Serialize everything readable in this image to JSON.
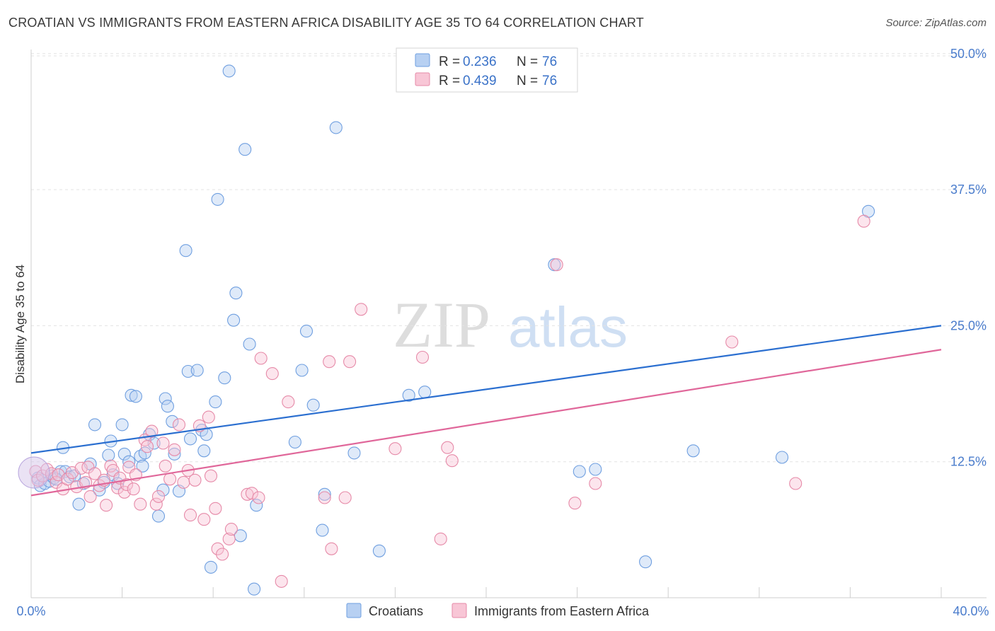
{
  "title": "CROATIAN VS IMMIGRANTS FROM EASTERN AFRICA DISABILITY AGE 35 TO 64 CORRELATION CHART",
  "source": "Source: ZipAtlas.com",
  "watermark": {
    "zip": "ZIP",
    "atlas": "atlas"
  },
  "legend": {
    "r_label": "R =",
    "n_label": "N =",
    "rows": [
      {
        "r": "0.236",
        "n": "76",
        "fill": "#b7d0f2",
        "stroke": "#6f9fe0"
      },
      {
        "r": "0.439",
        "n": "76",
        "fill": "#f8c6d6",
        "stroke": "#e68aa8"
      }
    ]
  },
  "chart_data": {
    "type": "scatter",
    "title": "CROATIAN VS IMMIGRANTS FROM EASTERN AFRICA DISABILITY AGE 35 TO 64 CORRELATION CHART",
    "ylabel": "Disability Age 35 to 64",
    "xlabel": "",
    "xlim": [
      0,
      40
    ],
    "ylim": [
      0,
      52
    ],
    "x_tick_labels": [
      "0.0%",
      "40.0%"
    ],
    "y_ticks": [
      {
        "value": 12.5,
        "label": "12.5%"
      },
      {
        "value": 25.0,
        "label": "25.0%"
      },
      {
        "value": 37.5,
        "label": "37.5%"
      },
      {
        "value": 50.0,
        "label": "50.0%"
      }
    ],
    "series": [
      {
        "name": "Croatians",
        "color": "#6f9fe0",
        "fill": "#b7d0f2",
        "line_color": "#2b6fd0",
        "trend": {
          "x0": 0,
          "y0": 13.3,
          "x1": 40,
          "y1": 25.0
        },
        "points": [
          [
            0.3,
            11.0
          ],
          [
            0.4,
            10.3
          ],
          [
            0.6,
            10.5
          ],
          [
            0.8,
            10.7
          ],
          [
            0.9,
            11.2
          ],
          [
            1.0,
            11.0
          ],
          [
            1.1,
            10.9
          ],
          [
            1.3,
            11.6
          ],
          [
            1.4,
            13.8
          ],
          [
            1.5,
            11.6
          ],
          [
            1.7,
            11.1
          ],
          [
            1.9,
            11.2
          ],
          [
            2.1,
            8.6
          ],
          [
            2.3,
            10.5
          ],
          [
            2.6,
            12.3
          ],
          [
            2.8,
            15.9
          ],
          [
            3.0,
            9.9
          ],
          [
            3.2,
            10.6
          ],
          [
            3.4,
            13.1
          ],
          [
            3.5,
            14.4
          ],
          [
            3.6,
            11.3
          ],
          [
            3.8,
            10.5
          ],
          [
            4.0,
            15.9
          ],
          [
            4.1,
            13.2
          ],
          [
            4.3,
            12.5
          ],
          [
            4.4,
            18.6
          ],
          [
            4.6,
            18.5
          ],
          [
            4.8,
            13.0
          ],
          [
            4.9,
            12.1
          ],
          [
            5.0,
            13.3
          ],
          [
            5.2,
            15.0
          ],
          [
            5.4,
            14.2
          ],
          [
            5.6,
            7.5
          ],
          [
            5.8,
            9.9
          ],
          [
            5.9,
            18.3
          ],
          [
            6.0,
            17.6
          ],
          [
            6.2,
            16.2
          ],
          [
            6.3,
            13.2
          ],
          [
            6.5,
            9.8
          ],
          [
            6.8,
            31.9
          ],
          [
            6.9,
            20.8
          ],
          [
            7.0,
            14.6
          ],
          [
            7.3,
            20.9
          ],
          [
            7.5,
            15.4
          ],
          [
            7.6,
            13.5
          ],
          [
            7.7,
            15.0
          ],
          [
            7.9,
            2.8
          ],
          [
            8.1,
            18.0
          ],
          [
            8.2,
            36.6
          ],
          [
            8.5,
            20.2
          ],
          [
            8.7,
            48.4
          ],
          [
            8.9,
            25.5
          ],
          [
            9.0,
            28.0
          ],
          [
            9.2,
            5.7
          ],
          [
            9.4,
            41.2
          ],
          [
            9.6,
            23.3
          ],
          [
            9.8,
            0.8
          ],
          [
            9.9,
            8.5
          ],
          [
            11.6,
            14.3
          ],
          [
            11.9,
            20.9
          ],
          [
            12.1,
            24.5
          ],
          [
            12.4,
            17.7
          ],
          [
            12.8,
            6.2
          ],
          [
            12.9,
            9.5
          ],
          [
            13.4,
            43.2
          ],
          [
            14.2,
            13.3
          ],
          [
            15.3,
            4.3
          ],
          [
            16.6,
            18.6
          ],
          [
            17.3,
            18.9
          ],
          [
            23.0,
            30.6
          ],
          [
            24.1,
            11.6
          ],
          [
            24.8,
            11.8
          ],
          [
            27.0,
            3.3
          ],
          [
            29.1,
            13.5
          ],
          [
            33.0,
            12.9
          ],
          [
            36.8,
            35.5
          ]
        ]
      },
      {
        "name": "Immigrants from Eastern Africa",
        "color": "#e68aa8",
        "fill": "#f8c6d6",
        "line_color": "#e0679a",
        "trend": {
          "x0": 0,
          "y0": 9.4,
          "x1": 40,
          "y1": 22.8
        },
        "points": [
          [
            0.2,
            11.6
          ],
          [
            0.3,
            10.8
          ],
          [
            0.5,
            11.2
          ],
          [
            0.7,
            11.8
          ],
          [
            0.9,
            11.4
          ],
          [
            1.1,
            10.6
          ],
          [
            1.2,
            11.3
          ],
          [
            1.4,
            10.0
          ],
          [
            1.6,
            10.9
          ],
          [
            1.8,
            11.5
          ],
          [
            2.0,
            10.2
          ],
          [
            2.2,
            11.9
          ],
          [
            2.4,
            10.6
          ],
          [
            2.5,
            12.0
          ],
          [
            2.6,
            9.3
          ],
          [
            2.8,
            11.4
          ],
          [
            3.0,
            10.3
          ],
          [
            3.2,
            10.8
          ],
          [
            3.3,
            8.5
          ],
          [
            3.5,
            12.1
          ],
          [
            3.6,
            11.7
          ],
          [
            3.8,
            10.1
          ],
          [
            3.9,
            11.0
          ],
          [
            4.1,
            9.7
          ],
          [
            4.2,
            10.4
          ],
          [
            4.3,
            12.0
          ],
          [
            4.5,
            10.0
          ],
          [
            4.6,
            11.3
          ],
          [
            4.8,
            8.6
          ],
          [
            5.0,
            14.5
          ],
          [
            5.1,
            13.9
          ],
          [
            5.3,
            15.3
          ],
          [
            5.5,
            8.6
          ],
          [
            5.6,
            9.3
          ],
          [
            5.8,
            14.2
          ],
          [
            5.9,
            12.1
          ],
          [
            6.1,
            10.9
          ],
          [
            6.3,
            13.6
          ],
          [
            6.5,
            15.9
          ],
          [
            6.7,
            10.6
          ],
          [
            6.9,
            11.7
          ],
          [
            7.0,
            7.6
          ],
          [
            7.2,
            10.8
          ],
          [
            7.4,
            15.8
          ],
          [
            7.6,
            7.2
          ],
          [
            7.8,
            16.6
          ],
          [
            7.9,
            11.2
          ],
          [
            8.1,
            8.2
          ],
          [
            8.2,
            4.5
          ],
          [
            8.4,
            4.0
          ],
          [
            8.7,
            5.4
          ],
          [
            8.8,
            6.3
          ],
          [
            9.5,
            9.5
          ],
          [
            9.7,
            9.6
          ],
          [
            10.0,
            9.2
          ],
          [
            10.1,
            22.0
          ],
          [
            10.6,
            20.6
          ],
          [
            11.0,
            1.5
          ],
          [
            11.3,
            18.0
          ],
          [
            12.9,
            9.2
          ],
          [
            13.1,
            21.7
          ],
          [
            13.2,
            4.5
          ],
          [
            13.8,
            9.2
          ],
          [
            14.0,
            21.7
          ],
          [
            14.5,
            26.5
          ],
          [
            16.0,
            13.7
          ],
          [
            17.2,
            22.1
          ],
          [
            18.0,
            5.4
          ],
          [
            18.3,
            13.8
          ],
          [
            18.5,
            12.6
          ],
          [
            23.1,
            30.6
          ],
          [
            23.9,
            8.7
          ],
          [
            24.8,
            10.5
          ],
          [
            30.8,
            23.5
          ],
          [
            33.6,
            10.5
          ],
          [
            36.6,
            34.6
          ]
        ]
      }
    ]
  }
}
